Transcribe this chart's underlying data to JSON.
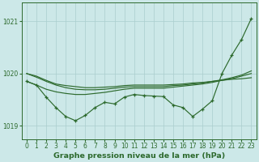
{
  "x": [
    0,
    1,
    2,
    3,
    4,
    5,
    6,
    7,
    8,
    9,
    10,
    11,
    12,
    13,
    14,
    15,
    16,
    17,
    18,
    19,
    20,
    21,
    22,
    23
  ],
  "series": [
    {
      "label": "line_smooth1",
      "y": [
        1020.0,
        1019.95,
        1019.87,
        1019.8,
        1019.77,
        1019.75,
        1019.73,
        1019.73,
        1019.74,
        1019.75,
        1019.77,
        1019.78,
        1019.78,
        1019.78,
        1019.78,
        1019.79,
        1019.8,
        1019.82,
        1019.83,
        1019.85,
        1019.87,
        1019.89,
        1019.9,
        1019.92
      ],
      "has_marker": false
    },
    {
      "label": "line_smooth2",
      "y": [
        1020.0,
        1019.93,
        1019.85,
        1019.78,
        1019.73,
        1019.7,
        1019.69,
        1019.69,
        1019.7,
        1019.72,
        1019.74,
        1019.75,
        1019.75,
        1019.75,
        1019.75,
        1019.77,
        1019.78,
        1019.8,
        1019.82,
        1019.85,
        1019.88,
        1019.92,
        1019.97,
        1020.05
      ],
      "has_marker": false
    },
    {
      "label": "line_zigzag",
      "y": [
        1019.85,
        1019.78,
        1019.55,
        1019.35,
        1019.18,
        1019.1,
        1019.2,
        1019.35,
        1019.45,
        1019.42,
        1019.55,
        1019.6,
        1019.58,
        1019.57,
        1019.56,
        1019.4,
        1019.35,
        1019.18,
        1019.32,
        1019.48,
        1020.0,
        1020.35,
        1020.65,
        1021.05
      ],
      "has_marker": true
    },
    {
      "label": "line_rising",
      "y": [
        1019.85,
        1019.78,
        1019.7,
        1019.65,
        1019.62,
        1019.6,
        1019.6,
        1019.62,
        1019.64,
        1019.67,
        1019.7,
        1019.72,
        1019.72,
        1019.72,
        1019.72,
        1019.74,
        1019.76,
        1019.78,
        1019.8,
        1019.83,
        1019.87,
        1019.9,
        1019.95,
        1020.0
      ],
      "has_marker": false
    }
  ],
  "line_color": "#2d6a2d",
  "marker": "+",
  "marker_size": 3.5,
  "marker_linewidth": 0.9,
  "line_width": 0.85,
  "ylim": [
    1018.75,
    1021.35
  ],
  "yticks": [
    1019,
    1020,
    1021
  ],
  "ytick_labels": [
    "1019",
    "1020",
    "1021"
  ],
  "xlim": [
    -0.5,
    23.5
  ],
  "xticks": [
    0,
    1,
    2,
    3,
    4,
    5,
    6,
    7,
    8,
    9,
    10,
    11,
    12,
    13,
    14,
    15,
    16,
    17,
    18,
    19,
    20,
    21,
    22,
    23
  ],
  "xlabel": "Graphe pression niveau de la mer (hPa)",
  "bg_color": "#cce8e8",
  "grid_color": "#aacece",
  "fig_bg": "#cce8e8",
  "tick_color": "#2d6a2d",
  "tick_labelsize": 5.5,
  "xlabel_fontsize": 6.8,
  "xlabel_fontweight": "bold"
}
